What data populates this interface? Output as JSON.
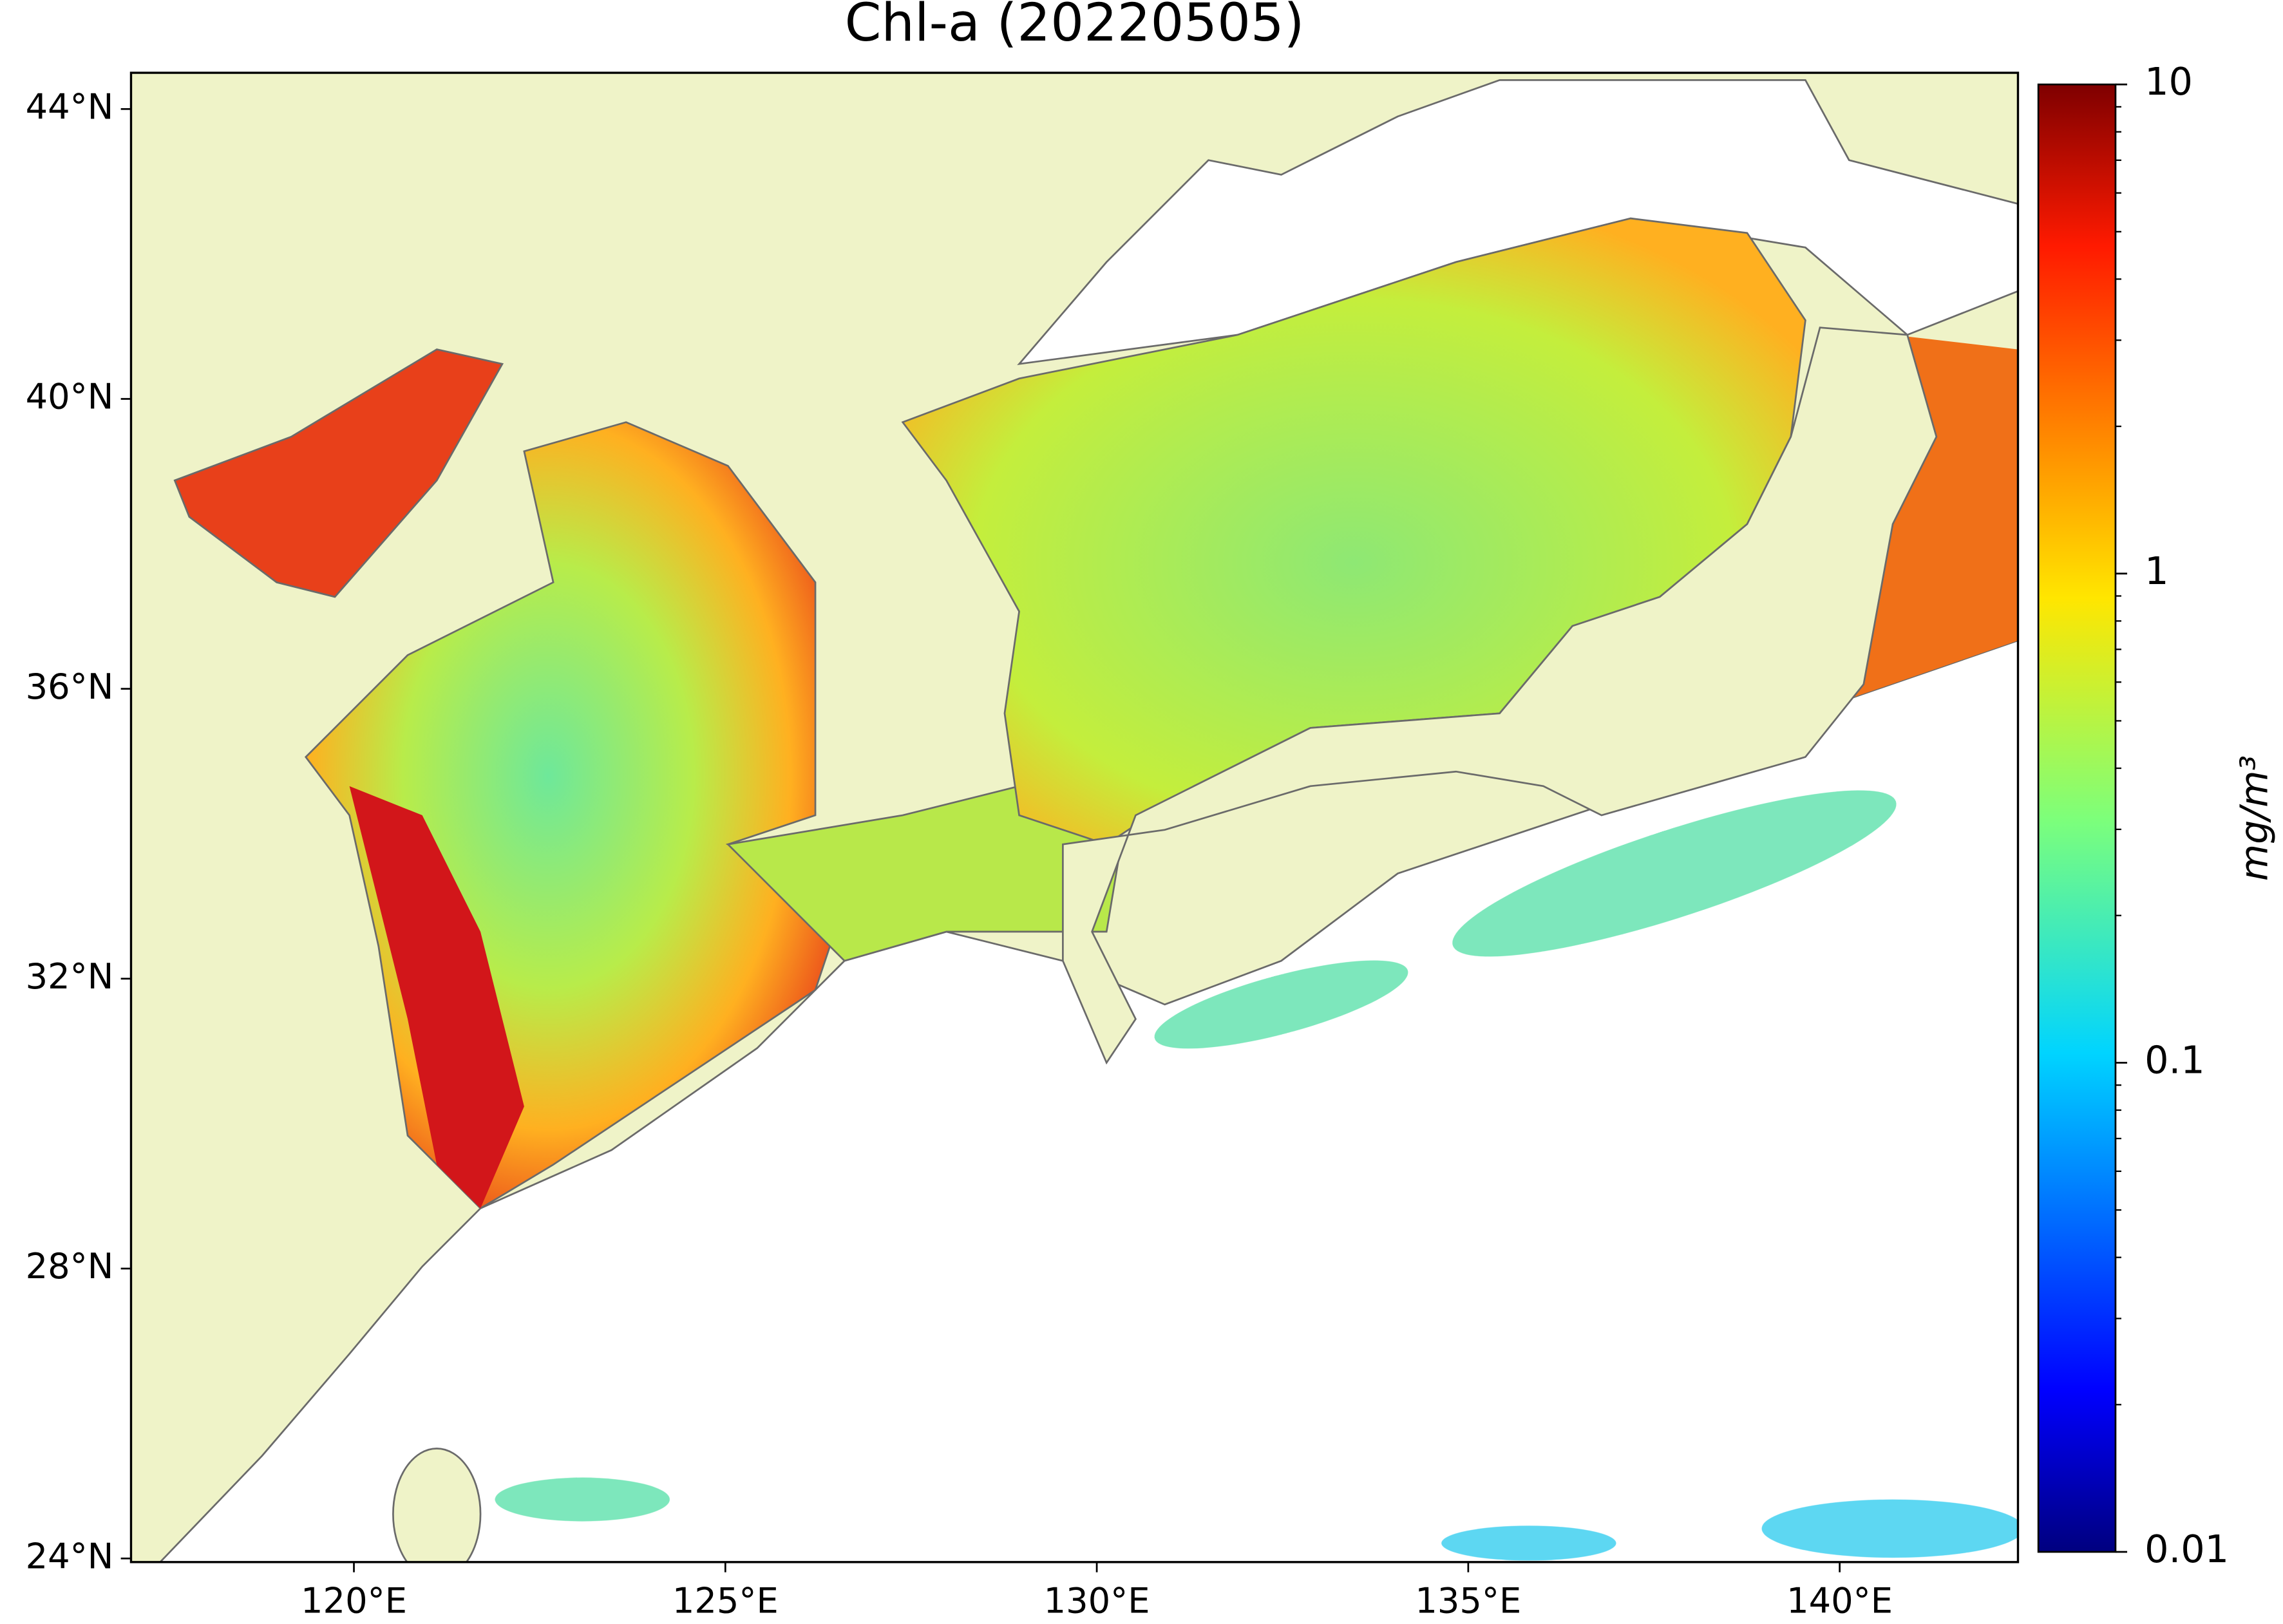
{
  "map": {
    "title": "Chl-a (20220505)",
    "xlim": [
      117,
      142.4
    ],
    "ylim": [
      23.95,
      44.5
    ],
    "xticks": [
      {
        "value": 120,
        "label": "120°E"
      },
      {
        "value": 125,
        "label": "125°E"
      },
      {
        "value": 130,
        "label": "130°E"
      },
      {
        "value": 135,
        "label": "135°E"
      },
      {
        "value": 140,
        "label": "140°E"
      }
    ],
    "yticks": [
      {
        "value": 24,
        "label": "24°N"
      },
      {
        "value": 28,
        "label": "28°N"
      },
      {
        "value": 32,
        "label": "32°N"
      },
      {
        "value": 36,
        "label": "36°N"
      },
      {
        "value": 40,
        "label": "40°N"
      },
      {
        "value": 44,
        "label": "44°N"
      }
    ],
    "colorbar": {
      "label": "mg/m³",
      "scale": "log",
      "lim": [
        0.01,
        10
      ],
      "ticks": [
        0.01,
        0.1,
        1,
        10
      ],
      "minor_ticks": [
        0.02,
        0.03,
        0.04,
        0.05,
        0.06,
        0.07,
        0.08,
        0.09,
        0.2,
        0.3,
        0.4,
        0.5,
        0.6,
        0.7,
        0.8,
        0.9,
        2,
        3,
        4,
        5,
        6,
        7,
        8,
        9
      ]
    }
  }
}
